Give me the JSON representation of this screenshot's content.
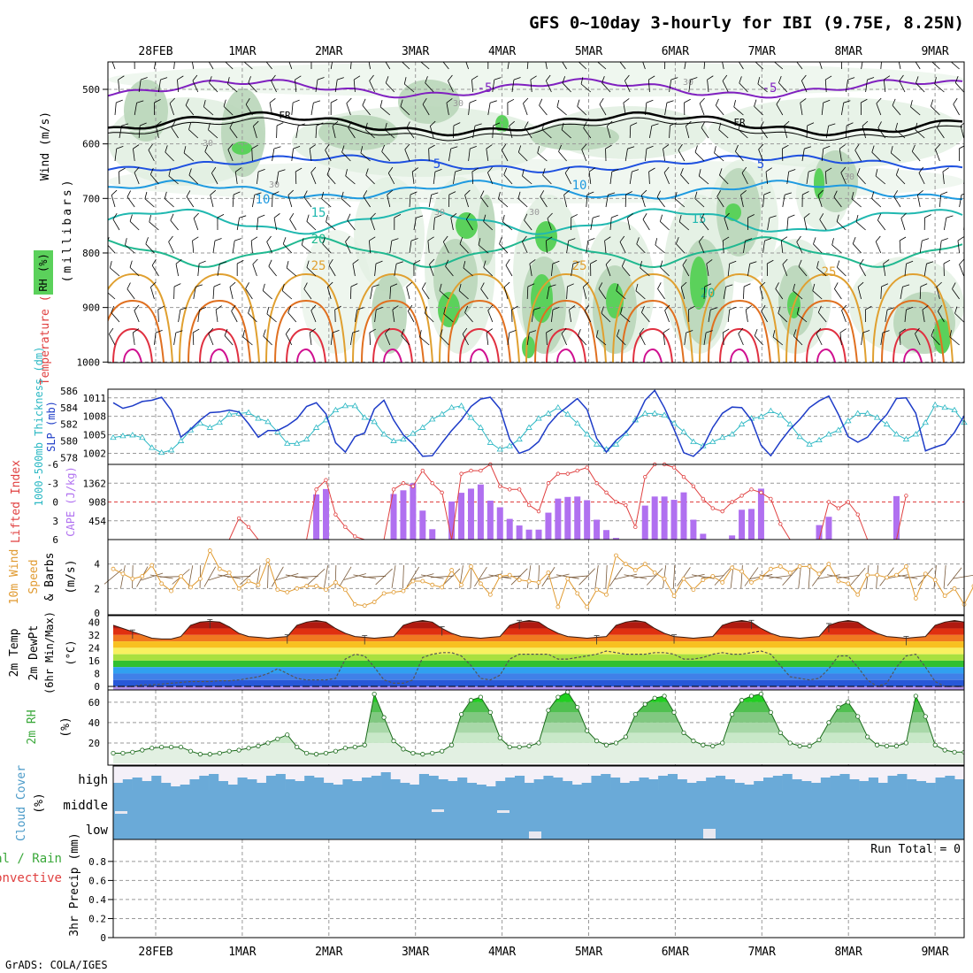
{
  "title": "GFS 0~10day 3-hourly for IBI (9.75E, 8.25N)",
  "credit": "GrADS: COLA/IGES",
  "dates": [
    "28FEB",
    "1MAR",
    "2MAR",
    "3MAR",
    "4MAR",
    "5MAR",
    "6MAR",
    "7MAR",
    "8MAR",
    "9MAR"
  ],
  "colors": {
    "rh_light": "#e2f0e2",
    "rh_mid": "#b9d6b9",
    "rh_dark": "#86b086",
    "rh_bright": "#5bd15b",
    "slp": "#1e3cc8",
    "thickness": "#2cb8c4",
    "cape": "#b070f0",
    "lifted": "#e04040",
    "wind10": "#e09a30",
    "dewpt": "#555555",
    "rh2m": "#3aa83a",
    "cloud": "#6aaad8"
  },
  "panels": {
    "upper_air": {
      "ylabel_wind": "Wind (m/s)",
      "ylabel_temp": "Temperature (°C)",
      "ylabel_rh": "RH (%)",
      "ylabel_p": "(millibars)",
      "yticks": [
        "500",
        "600",
        "700",
        "800",
        "900",
        "1000"
      ],
      "isotherm_labels": [
        "-5",
        "-5",
        "FR",
        "FR",
        "5",
        "5",
        "10",
        "10",
        "15",
        "15",
        "20",
        "20",
        "25",
        "25",
        "25",
        "30",
        "30",
        "30",
        "30",
        "30",
        "30",
        "30"
      ]
    },
    "slp": {
      "ylabel_thick": "1000-500mb Thickness (dm)",
      "ylabel_slp": "SLP (mb)",
      "thick_ticks": [
        "586",
        "584",
        "582",
        "580",
        "578"
      ],
      "slp_ticks": [
        "1011",
        "1008",
        "1005",
        "1002"
      ]
    },
    "cape": {
      "ylabel_li": "Lifted Index",
      "ylabel_cape": "CAPE (J/kg)",
      "li_ticks": [
        "-6",
        "-3",
        "0",
        "3",
        "6"
      ],
      "cape_ticks": [
        "1362",
        "908",
        "454"
      ]
    },
    "wind": {
      "ylabel1": "10m Wind",
      "ylabel2": "Speed",
      "ylabel3": "& Barbs",
      "ylabel_unit": "(m/s)",
      "yticks": [
        "4",
        "2",
        "0"
      ]
    },
    "temp": {
      "ylabel1": "2m Temp",
      "ylabel2": "2m DewPt",
      "ylabel3": "(6hr Min/Max)",
      "ylabel_unit": "(°C)",
      "yticks": [
        "40",
        "32",
        "24",
        "16",
        "8",
        "0"
      ]
    },
    "rh": {
      "ylabel": "2m RH",
      "ylabel_unit": "(%)",
      "yticks": [
        "60",
        "40",
        "20"
      ]
    },
    "cloud": {
      "ylabel": "Cloud Cover",
      "ylabel_unit": "(%)",
      "levels": [
        "high",
        "middle",
        "low"
      ]
    },
    "precip": {
      "ylabel_total": "Total / Rain",
      "ylabel_conv": "Convective",
      "ylabel_axis": "3hr Precip (mm)",
      "yticks": [
        "0.8",
        "0.6",
        "0.4",
        "0.2",
        "0"
      ],
      "run_total": "Run Total = 0"
    }
  },
  "chart_data": [
    {
      "type": "line",
      "title": "SLP (mb)",
      "x_start": "27FEB 18Z",
      "x_step_hours": 3,
      "series": [
        {
          "name": "SLP (mb)",
          "values": [
            1010.2,
            1009.3,
            1009.7,
            1010.4,
            1010.6,
            1011.1,
            1009.0,
            1004.6,
            1005.9,
            1007.4,
            1008.6,
            1008.7,
            1009.0,
            1008.7,
            1006.8,
            1004.6,
            1005.7,
            1005.7,
            1006.5,
            1007.6,
            1009.6,
            1010.2,
            1008.4,
            1003.7,
            1002.2,
            1004.7,
            1005.3,
            1009.2,
            1010.6,
            1007.4,
            1005.0,
            1003.5,
            1001.5,
            1001.6,
            1003.7,
            1005.7,
            1007.4,
            1009.6,
            1010.8,
            1011.1,
            1009.2,
            1004.3,
            1002.0,
            1002.6,
            1003.9,
            1006.6,
            1008.4,
            1009.6,
            1010.9,
            1009.1,
            1004.4,
            1002.2,
            1004.1,
            1005.4,
            1007.3,
            1010.6,
            1012.2,
            1009.4,
            1005.9,
            1002.1,
            1001.5,
            1003.0,
            1006.2,
            1008.5,
            1009.5,
            1009.4,
            1007.4,
            1003.3,
            1001.6,
            1003.9,
            1005.9,
            1007.5,
            1009.4,
            1010.5,
            1011.3,
            1008.3,
            1004.7,
            1003.8,
            1004.6,
            1006.6,
            1008.3,
            1010.9,
            1011.0,
            1008.5,
            1002.4,
            1003.0,
            1003.5,
            1005.4,
            1008.1
          ]
        },
        {
          "name": "1000-500mb Thickness (dm)",
          "values": [
            580.4,
            580.6,
            580.7,
            580.4,
            579.2,
            578.6,
            578.9,
            580.0,
            581.3,
            582.1,
            581.6,
            582.2,
            583.2,
            583.3,
            583.4,
            582.7,
            582.3,
            581.1,
            579.7,
            579.7,
            580.2,
            581.6,
            582.5,
            583.7,
            584.2,
            584.2,
            582.8,
            582.3,
            580.8,
            580.0,
            580.2,
            580.9,
            581.6,
            582.6,
            583.2,
            584.0,
            584.2,
            582.8,
            581.6,
            579.8,
            579.0,
            579.4,
            580.2,
            581.6,
            582.7,
            583.3,
            584.0,
            583.2,
            582.1,
            580.8,
            579.6,
            579.0,
            579.6,
            580.9,
            582.5,
            583.3,
            583.3,
            583.1,
            582.1,
            581.1,
            579.9,
            579.4,
            579.9,
            580.4,
            580.8,
            582.0,
            582.7,
            582.9,
            583.6,
            583.1,
            582.0,
            580.5,
            579.6,
            580.1,
            580.8,
            581.3,
            582.4,
            583.3,
            583.3,
            582.8,
            582.0,
            580.8,
            580.2,
            580.8,
            582.2,
            584.3,
            584.0,
            583.7,
            582.2
          ]
        }
      ]
    },
    {
      "type": "bar",
      "title": "CAPE (J/kg) / Lifted Index",
      "cape_values": [
        0,
        0,
        0,
        0,
        0,
        0,
        0,
        0,
        0,
        0,
        0,
        0,
        0,
        0,
        0,
        0,
        0,
        0,
        0,
        0,
        0,
        0,
        0,
        0,
        0,
        0,
        0,
        0,
        0,
        0,
        0,
        0,
        0,
        0,
        0,
        0,
        0,
        0,
        0,
        0,
        0,
        0,
        0,
        0,
        0,
        0,
        0,
        0,
        0,
        0,
        0,
        0,
        0,
        0,
        0,
        0,
        0,
        0,
        0,
        0,
        0,
        0,
        0,
        0,
        0,
        0,
        0,
        0,
        0,
        0,
        0,
        0,
        0,
        0,
        0,
        0,
        0,
        0,
        0,
        0,
        0,
        0,
        0,
        0,
        0,
        0,
        0,
        0,
        0
      ],
      "cape_bars": [
        {
          "i": 21,
          "v": 1090
        },
        {
          "i": 22,
          "v": 1220
        },
        {
          "i": 29,
          "v": 1100
        },
        {
          "i": 30,
          "v": 1190
        },
        {
          "i": 31,
          "v": 1360
        },
        {
          "i": 32,
          "v": 700
        },
        {
          "i": 33,
          "v": 250
        },
        {
          "i": 35,
          "v": 920
        },
        {
          "i": 36,
          "v": 1130
        },
        {
          "i": 37,
          "v": 1230
        },
        {
          "i": 38,
          "v": 1330
        },
        {
          "i": 39,
          "v": 940
        },
        {
          "i": 40,
          "v": 780
        },
        {
          "i": 41,
          "v": 500
        },
        {
          "i": 42,
          "v": 340
        },
        {
          "i": 43,
          "v": 240
        },
        {
          "i": 44,
          "v": 240
        },
        {
          "i": 45,
          "v": 650
        },
        {
          "i": 46,
          "v": 990
        },
        {
          "i": 47,
          "v": 1030
        },
        {
          "i": 48,
          "v": 1040
        },
        {
          "i": 49,
          "v": 950
        },
        {
          "i": 50,
          "v": 480
        },
        {
          "i": 51,
          "v": 230
        },
        {
          "i": 52,
          "v": 40
        },
        {
          "i": 55,
          "v": 820
        },
        {
          "i": 56,
          "v": 1040
        },
        {
          "i": 57,
          "v": 1040
        },
        {
          "i": 58,
          "v": 960
        },
        {
          "i": 59,
          "v": 1140
        },
        {
          "i": 60,
          "v": 480
        },
        {
          "i": 61,
          "v": 140
        },
        {
          "i": 64,
          "v": 100
        },
        {
          "i": 65,
          "v": 720
        },
        {
          "i": 66,
          "v": 740
        },
        {
          "i": 67,
          "v": 1230
        },
        {
          "i": 73,
          "v": 350
        },
        {
          "i": 74,
          "v": 550
        },
        {
          "i": 81,
          "v": 1050
        }
      ],
      "lifted_index": [
        6,
        6,
        6,
        6,
        6,
        6,
        6,
        6,
        6,
        6,
        6,
        6,
        6,
        2.6,
        4,
        6,
        6,
        6,
        6,
        6,
        6,
        -2,
        -3.5,
        2,
        4,
        5.5,
        6,
        6,
        6,
        -2,
        -3,
        -2.5,
        -5,
        -3,
        -1.5,
        6,
        -4.5,
        -5,
        -5,
        -6,
        -2.5,
        -2,
        -2,
        0.5,
        1.5,
        -3,
        -4.5,
        -4.5,
        -5,
        -5.5,
        -3,
        -1.5,
        0,
        0.5,
        4,
        -4,
        -6,
        -6,
        -5.5,
        -4,
        -2.5,
        -0.5,
        1,
        1.5,
        0,
        -1,
        -2,
        -1.5,
        -0.5,
        3.5,
        6,
        6,
        6,
        6,
        0,
        1,
        0,
        2,
        6,
        6,
        6,
        6,
        -1
      ],
      "li_ylim": [
        6,
        -6
      ],
      "cape_ylim": [
        0,
        1816
      ]
    },
    {
      "type": "line",
      "title": "10m Wind Speed (m/s)",
      "values": [
        3.6,
        3.2,
        2.8,
        3.0,
        3.9,
        2.4,
        1.8,
        3.0,
        2.1,
        2.8,
        5.1,
        3.6,
        3.3,
        2.0,
        2.6,
        2.3,
        4.3,
        1.9,
        1.7,
        2.0,
        2.2,
        2.2,
        1.9,
        2.5,
        1.9,
        0.7,
        0.6,
        0.9,
        1.6,
        1.7,
        1.8,
        2.6,
        2.6,
        2.3,
        2.1,
        3.5,
        2.3,
        3.8,
        2.4,
        1.5,
        3.0,
        3.1,
        2.7,
        2.6,
        2.5,
        3.3,
        0.5,
        2.8,
        1.6,
        0.5,
        1.9,
        1.5,
        4.7,
        4.0,
        3.5,
        4.0,
        3.3,
        2.8,
        1.4,
        2.8,
        1.9,
        2.7,
        3.0,
        2.5,
        3.7,
        3.4,
        2.5,
        2.9,
        3.6,
        3.8,
        3.3,
        3.8,
        3.8,
        3.2,
        4.0,
        2.6,
        2.4,
        1.5,
        3.1,
        3.1,
        2.9,
        3.1,
        3.8,
        1.2,
        3.2,
        2.7,
        1.4,
        2.0,
        0.7,
        2.2,
        3.4,
        3.8
      ],
      "ylim": [
        0,
        6
      ]
    },
    {
      "type": "area",
      "title": "2m Temp / 2m DewPt (°C)",
      "temp": [
        38,
        36,
        34,
        32,
        30,
        29.5,
        29.5,
        31,
        38,
        40,
        40.5,
        40,
        37,
        33,
        31,
        30.5,
        30,
        30.5,
        31,
        38,
        40,
        41,
        40,
        36,
        33,
        31,
        30.5,
        30,
        30.5,
        31,
        38,
        40,
        41,
        40,
        36,
        33,
        31,
        30.5,
        30,
        30.5,
        31,
        38,
        40,
        41,
        40,
        36,
        33,
        31,
        30.5,
        30,
        30.5,
        31,
        38,
        40,
        41,
        40,
        36,
        33,
        31,
        30.5,
        30,
        30.5,
        31,
        38,
        40,
        41,
        40,
        36,
        33,
        31,
        30.5,
        30,
        30.5,
        31,
        38,
        40,
        41,
        40,
        36,
        33,
        31,
        30.5,
        30,
        30.5,
        31,
        38,
        40,
        41,
        40
      ],
      "dewpt": [
        0,
        0,
        0,
        1,
        1,
        1.5,
        2,
        2.5,
        3,
        3,
        3,
        3.5,
        3.5,
        4,
        5,
        6,
        8,
        11,
        8,
        5,
        4,
        4,
        4,
        5,
        17,
        20,
        19,
        12,
        4,
        2,
        2,
        4,
        18,
        20,
        21,
        21,
        19,
        13,
        5,
        4,
        7,
        17,
        20,
        20,
        20,
        20,
        17,
        17,
        18,
        19,
        20,
        22,
        21,
        20,
        20,
        20,
        21,
        21,
        20,
        17,
        17,
        18,
        20,
        21,
        20,
        20,
        21,
        22,
        20,
        13,
        6,
        5,
        4,
        5,
        11,
        19,
        19,
        12,
        4,
        0,
        2,
        12,
        19,
        20,
        12,
        3,
        0,
        0,
        0,
        21
      ],
      "ylim": [
        0,
        44
      ]
    },
    {
      "type": "area",
      "title": "2m RH (%)",
      "values": [
        10,
        10,
        11,
        13,
        15,
        16,
        16,
        16,
        12,
        9,
        9,
        10,
        12,
        13,
        15,
        17,
        20,
        24,
        28,
        16,
        10,
        9,
        10,
        12,
        15,
        16,
        18,
        68,
        45,
        22,
        14,
        10,
        9,
        10,
        12,
        18,
        48,
        62,
        65,
        50,
        25,
        16,
        16,
        17,
        20,
        52,
        65,
        70,
        55,
        32,
        22,
        18,
        20,
        26,
        48,
        58,
        64,
        66,
        50,
        30,
        22,
        18,
        17,
        20,
        48,
        62,
        66,
        68,
        50,
        30,
        20,
        17,
        17,
        23,
        40,
        55,
        60,
        46,
        26,
        18,
        17,
        17,
        20,
        66,
        46,
        18,
        13,
        11,
        11,
        12,
        30,
        66
      ],
      "ylim": [
        0,
        72
      ]
    }
  ]
}
